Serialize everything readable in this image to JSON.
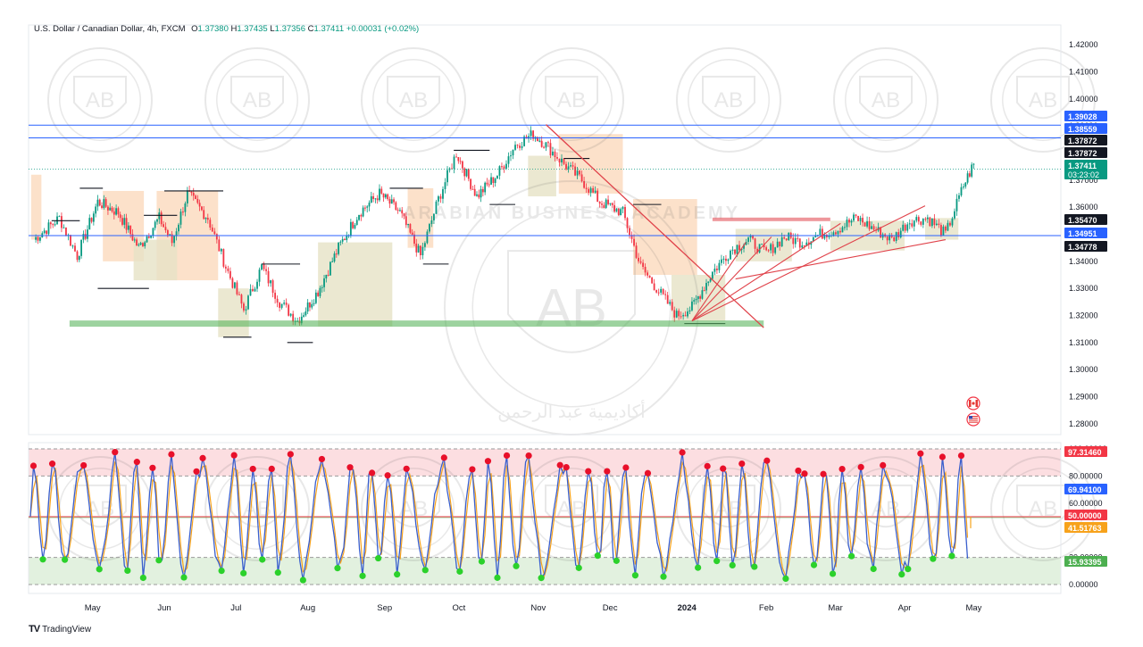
{
  "header": {
    "symbol": "U.S. Dollar / Canadian Dollar, 4h, FXCM",
    "open_label": "O",
    "open": "1.37380",
    "high_label": "H",
    "high": "1.37435",
    "low_label": "L",
    "low": "1.37356",
    "close_label": "C",
    "close": "1.37411",
    "change": "+0.00031 (+0.02%)"
  },
  "footer": {
    "brand": "TradingView",
    "logo": "TV"
  },
  "watermark": {
    "text": "ARABIAN BUSINESS ACADEMY",
    "monogram": "AB",
    "arabic": "أكاديمية عبد الرحمن"
  },
  "colors": {
    "bull": "#089981",
    "bear": "#f23645",
    "hline": "#2962ff",
    "support": "#4caf50",
    "trend": "#e0424a",
    "osc_line": "#3a5fcd",
    "osc_signal": "#f7a21b",
    "ob_zone": "#fbd3d7",
    "os_zone": "#dff0dc",
    "range_orange": "#fbd9bd",
    "range_olive": "#e6e2c6"
  },
  "chart_data": [
    {
      "type": "line",
      "title": "U.S. Dollar / Canadian Dollar, 4h, FXCM",
      "x_ticks": [
        "May",
        "Jun",
        "Jul",
        "Aug",
        "Sep",
        "Oct",
        "Nov",
        "Dec",
        "2024",
        "Feb",
        "Mar",
        "Apr",
        "May"
      ],
      "y_ticks": [
        "1.42000",
        "1.41000",
        "1.40000",
        "1.39000",
        "1.38000",
        "1.37000",
        "1.36000",
        "1.35000",
        "1.34000",
        "1.33000",
        "1.32000",
        "1.31000",
        "1.30000",
        "1.29000",
        "1.28000"
      ],
      "ylim": [
        1.276,
        1.424
      ],
      "price_path": {
        "x": [
          "Apr 15",
          "Apr 25",
          "May 2",
          "May 10",
          "May 18",
          "May 26",
          "Jun 3",
          "Jun 8",
          "Jun 14",
          "Jun 22",
          "Jun 29",
          "Jul 6",
          "Jul 13",
          "Jul 20",
          "Jul 27",
          "Aug 4",
          "Aug 12",
          "Aug 20",
          "Aug 28",
          "Sep 5",
          "Sep 13",
          "Sep 20",
          "Sep 27",
          "Oct 5",
          "Oct 13",
          "Oct 20",
          "Oct 27",
          "Nov 1",
          "Nov 8",
          "Nov 15",
          "Nov 22",
          "Dec 1",
          "Dec 8",
          "Dec 15",
          "Dec 22",
          "Dec 28",
          "Jan 5",
          "Jan 12",
          "Jan 19",
          "Jan 26",
          "Feb 2",
          "Feb 9",
          "Feb 16",
          "Feb 23",
          "Mar 1",
          "Mar 8",
          "Mar 15",
          "Mar 22",
          "Mar 29",
          "Apr 5",
          "Apr 12",
          "Apr 16"
        ],
        "values": [
          1.348,
          1.356,
          1.342,
          1.362,
          1.358,
          1.345,
          1.356,
          1.347,
          1.365,
          1.356,
          1.338,
          1.322,
          1.338,
          1.325,
          1.318,
          1.329,
          1.345,
          1.358,
          1.365,
          1.358,
          1.342,
          1.363,
          1.38,
          1.364,
          1.372,
          1.383,
          1.387,
          1.383,
          1.376,
          1.37,
          1.362,
          1.358,
          1.338,
          1.329,
          1.32,
          1.323,
          1.336,
          1.344,
          1.348,
          1.343,
          1.349,
          1.347,
          1.35,
          1.352,
          1.356,
          1.352,
          1.348,
          1.355,
          1.356,
          1.35,
          1.368,
          1.376
        ]
      },
      "horizontal_levels": [
        {
          "value": 1.39028,
          "label": "1.39028",
          "color": "#2962ff"
        },
        {
          "value": 1.38559,
          "label": "1.38559",
          "color": "#2962ff"
        },
        {
          "value": 1.37872,
          "label": "1.37872",
          "color": "#131722"
        },
        {
          "value": 1.37872,
          "label": "1.37872",
          "color": "#131722"
        },
        {
          "value": 1.37411,
          "label": "1.37411",
          "sublabel": "03:23:02",
          "color": "#089981"
        },
        {
          "value": 1.3547,
          "label": "1.35470",
          "color": "#131722"
        },
        {
          "value": 1.34951,
          "label": "1.34951",
          "color": "#2962ff"
        },
        {
          "value": 1.34778,
          "label": "1.34778",
          "color": "#131722"
        }
      ],
      "support_zone": {
        "from": "Apr 29",
        "to": "Jan 25",
        "value": 1.317
      },
      "flags": [
        "CAD",
        "USD"
      ]
    },
    {
      "type": "line",
      "x_ticks": [
        "May",
        "Jun",
        "Jul",
        "Aug",
        "Sep",
        "Oct",
        "Nov",
        "Dec",
        "2024",
        "Feb",
        "Mar",
        "Apr",
        "May"
      ],
      "y_ticks": [
        "100.00000",
        "80.00000",
        "60.00000",
        "40.00000",
        "20.00000",
        "0.00000"
      ],
      "ylim": [
        0,
        100
      ],
      "levels": [
        {
          "value": 97.3146,
          "label": "97.31460",
          "color": "#f23645"
        },
        {
          "value": 69.941,
          "label": "69.94100",
          "color": "#2962ff"
        },
        {
          "value": 50.0,
          "label": "50.00000",
          "color": "#f23645"
        },
        {
          "value": 41.51763,
          "label": "41.51763",
          "color": "#f7a21b"
        },
        {
          "value": 15.93395,
          "label": "15.93395",
          "color": "#4caf50"
        }
      ]
    }
  ]
}
